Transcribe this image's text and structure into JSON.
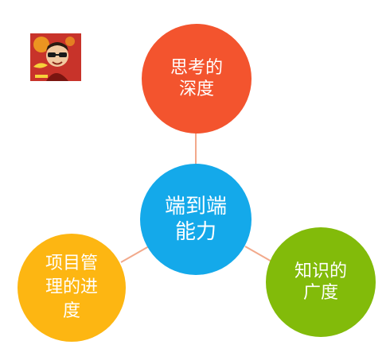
{
  "nodes": {
    "center": {
      "label": "端到端能力",
      "color": "#14a9ea"
    },
    "top": {
      "label": "思考的深度",
      "color": "#f3542e"
    },
    "left": {
      "label": "项目管理的进度",
      "color": "#fdb612"
    },
    "right": {
      "label": "知识的广度",
      "color": "#82bb0a"
    }
  },
  "connector_color": "#f2a98b",
  "icons": {
    "avatar": "avatar-logo-icon"
  }
}
